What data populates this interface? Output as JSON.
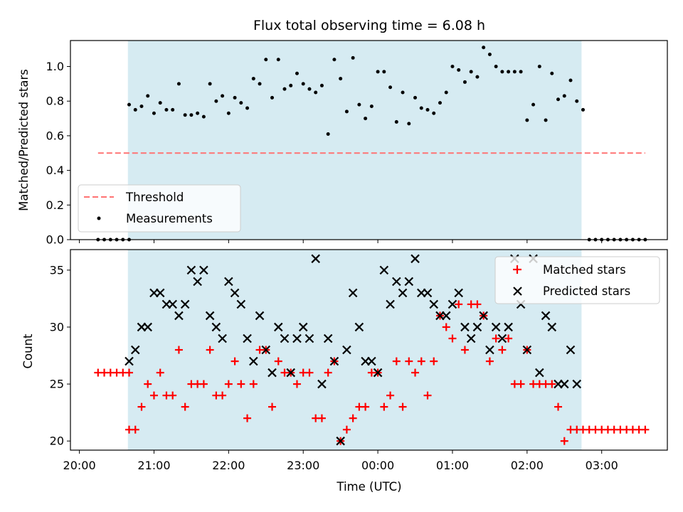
{
  "chart_data": [
    {
      "type": "scatter",
      "title": "Flux total observing time = 6.08 h",
      "ylabel": "Matched/Predicted stars",
      "ylim": [
        0,
        1.15
      ],
      "yticks": [
        0.0,
        0.2,
        0.4,
        0.6,
        0.8,
        1.0
      ],
      "yticklabels": [
        "0.0",
        "0.2",
        "0.4",
        "0.6",
        "0.8",
        "1.0"
      ],
      "xlim_hours_from_2000": [
        -0.12,
        7.88
      ],
      "shaded_interval_hours_from_2000": [
        0.65,
        6.73
      ],
      "legend": {
        "placement": "lower-left",
        "entries": [
          "Threshold",
          "Measurements"
        ]
      },
      "series": [
        {
          "name": "Threshold",
          "style": "dashed-line",
          "color": "#ff7373",
          "x": [
            "20:15",
            "03:35"
          ],
          "y": [
            0.5,
            0.5
          ]
        },
        {
          "name": "Measurements",
          "style": "dot",
          "color": "#000000",
          "x": [
            "20:15",
            "20:20",
            "20:25",
            "20:30",
            "20:35",
            "20:40",
            "20:40",
            "20:45",
            "20:50",
            "20:55",
            "21:00",
            "21:05",
            "21:10",
            "21:15",
            "21:20",
            "21:25",
            "21:30",
            "21:35",
            "21:40",
            "21:45",
            "21:50",
            "21:55",
            "22:00",
            "22:05",
            "22:10",
            "22:15",
            "22:20",
            "22:25",
            "22:30",
            "22:35",
            "22:40",
            "22:45",
            "22:50",
            "22:55",
            "23:00",
            "23:05",
            "23:10",
            "23:15",
            "23:20",
            "23:25",
            "23:30",
            "23:35",
            "23:40",
            "23:45",
            "23:50",
            "23:55",
            "00:00",
            "00:05",
            "00:10",
            "00:15",
            "00:20",
            "00:25",
            "00:30",
            "00:35",
            "00:40",
            "00:45",
            "00:50",
            "00:55",
            "01:00",
            "01:05",
            "01:10",
            "01:15",
            "01:20",
            "01:25",
            "01:30",
            "01:35",
            "01:40",
            "01:45",
            "01:50",
            "01:55",
            "02:00",
            "02:05",
            "02:10",
            "02:15",
            "02:20",
            "02:25",
            "02:30",
            "02:35",
            "02:40",
            "02:45",
            "02:50",
            "02:55",
            "03:00",
            "03:05",
            "03:10",
            "03:15",
            "03:20",
            "03:25",
            "03:30",
            "03:35"
          ],
          "y": [
            0.0,
            0.0,
            0.0,
            0.0,
            0.0,
            0.0,
            0.78,
            0.75,
            0.77,
            0.83,
            0.73,
            0.79,
            0.75,
            0.75,
            0.9,
            0.72,
            0.72,
            0.73,
            0.71,
            0.9,
            0.8,
            0.83,
            0.73,
            0.82,
            0.79,
            0.76,
            0.93,
            0.9,
            1.04,
            0.82,
            1.04,
            0.87,
            0.89,
            0.96,
            0.9,
            0.87,
            0.85,
            0.89,
            0.61,
            1.04,
            0.93,
            0.74,
            1.05,
            0.78,
            0.7,
            0.77,
            0.97,
            0.97,
            0.88,
            0.68,
            0.85,
            0.67,
            0.82,
            0.76,
            0.75,
            0.73,
            0.79,
            0.85,
            1.0,
            0.98,
            0.91,
            0.97,
            0.94,
            1.11,
            1.07,
            1.0,
            0.97,
            0.97,
            0.97,
            0.97,
            0.69,
            0.78,
            1.0,
            0.69,
            0.96,
            0.81,
            0.83,
            0.92,
            0.8,
            0.75,
            0.0,
            0.0,
            0.0,
            0.0,
            0.0,
            0.0,
            0.0,
            0.0,
            0.0,
            0.0
          ]
        }
      ]
    },
    {
      "type": "scatter",
      "xlabel": "Time (UTC)",
      "ylabel": "Count",
      "ylim": [
        19.2,
        36.8
      ],
      "yticks": [
        20,
        25,
        30,
        35
      ],
      "yticklabels": [
        "20",
        "25",
        "30",
        "35"
      ],
      "xticklabels": [
        "20:00",
        "21:00",
        "22:00",
        "23:00",
        "00:00",
        "01:00",
        "02:00",
        "03:00"
      ],
      "xlim_hours_from_2000": [
        -0.12,
        7.88
      ],
      "shaded_interval_hours_from_2000": [
        0.65,
        6.73
      ],
      "legend": {
        "placement": "top-right",
        "entries": [
          "Matched stars",
          "Predicted stars"
        ]
      },
      "series": [
        {
          "name": "Matched stars",
          "marker": "plus",
          "color": "#ff0000",
          "x": [
            "20:15",
            "20:20",
            "20:25",
            "20:30",
            "20:35",
            "20:40",
            "20:40",
            "20:45",
            "20:50",
            "20:55",
            "21:00",
            "21:05",
            "21:10",
            "21:15",
            "21:20",
            "21:25",
            "21:30",
            "21:35",
            "21:40",
            "21:45",
            "21:50",
            "21:55",
            "22:00",
            "22:05",
            "22:10",
            "22:15",
            "22:20",
            "22:25",
            "22:30",
            "22:35",
            "22:40",
            "22:45",
            "22:50",
            "22:55",
            "23:00",
            "23:05",
            "23:10",
            "23:15",
            "23:20",
            "23:25",
            "23:30",
            "23:35",
            "23:40",
            "23:45",
            "23:50",
            "23:55",
            "00:00",
            "00:05",
            "00:10",
            "00:15",
            "00:20",
            "00:25",
            "00:30",
            "00:35",
            "00:40",
            "00:45",
            "00:50",
            "00:55",
            "01:00",
            "01:05",
            "01:10",
            "01:15",
            "01:20",
            "01:25",
            "01:30",
            "01:35",
            "01:40",
            "01:45",
            "01:50",
            "01:55",
            "02:00",
            "02:05",
            "02:10",
            "02:15",
            "02:20",
            "02:25",
            "02:30",
            "02:35",
            "02:40",
            "02:45",
            "02:50",
            "02:55",
            "03:00",
            "03:05",
            "03:10",
            "03:15",
            "03:20",
            "03:25",
            "03:30",
            "03:35"
          ],
          "y": [
            26,
            26,
            26,
            26,
            26,
            26,
            21,
            21,
            23,
            25,
            24,
            26,
            24,
            24,
            28,
            23,
            25,
            25,
            25,
            28,
            24,
            24,
            25,
            27,
            25,
            22,
            25,
            28,
            28,
            23,
            27,
            26,
            26,
            25,
            26,
            26,
            22,
            22,
            26,
            27,
            20,
            21,
            22,
            23,
            23,
            26,
            26,
            23,
            24,
            27,
            23,
            27,
            26,
            27,
            24,
            27,
            31,
            30,
            29,
            32,
            28,
            32,
            32,
            31,
            27,
            29,
            28,
            29,
            25,
            25,
            28,
            25,
            25,
            25,
            25,
            23,
            20,
            21,
            21,
            21,
            21,
            21,
            21,
            21,
            21,
            21,
            21,
            21,
            21,
            21
          ]
        },
        {
          "name": "Predicted stars",
          "marker": "x",
          "color": "#000000",
          "x": [
            "20:40",
            "20:45",
            "20:50",
            "20:55",
            "21:00",
            "21:05",
            "21:10",
            "21:15",
            "21:20",
            "21:25",
            "21:30",
            "21:35",
            "21:40",
            "21:45",
            "21:50",
            "21:55",
            "22:00",
            "22:05",
            "22:10",
            "22:15",
            "22:20",
            "22:25",
            "22:30",
            "22:35",
            "22:40",
            "22:45",
            "22:50",
            "22:55",
            "23:00",
            "23:05",
            "23:10",
            "23:15",
            "23:20",
            "23:25",
            "23:30",
            "23:35",
            "23:40",
            "23:45",
            "23:50",
            "23:55",
            "00:00",
            "00:05",
            "00:10",
            "00:15",
            "00:20",
            "00:25",
            "00:30",
            "00:35",
            "00:40",
            "00:45",
            "00:50",
            "00:55",
            "01:00",
            "01:05",
            "01:10",
            "01:15",
            "01:20",
            "01:25",
            "01:30",
            "01:35",
            "01:40",
            "01:45",
            "01:50",
            "01:55",
            "02:00",
            "02:05",
            "02:10",
            "02:15",
            "02:20",
            "02:25",
            "02:30",
            "02:35",
            "02:40"
          ],
          "y": [
            27,
            28,
            30,
            30,
            33,
            33,
            32,
            32,
            31,
            32,
            35,
            34,
            35,
            31,
            30,
            29,
            34,
            33,
            32,
            29,
            27,
            31,
            28,
            26,
            30,
            29,
            26,
            29,
            30,
            29,
            36,
            25,
            29,
            27,
            20,
            28,
            33,
            30,
            27,
            27,
            26,
            35,
            32,
            34,
            33,
            34,
            36,
            33,
            33,
            32,
            31,
            31,
            32,
            33,
            30,
            29,
            30,
            31,
            28,
            30,
            29,
            30,
            36,
            32,
            28,
            36,
            26,
            31,
            30,
            25,
            25,
            28,
            25
          ]
        }
      ]
    }
  ]
}
